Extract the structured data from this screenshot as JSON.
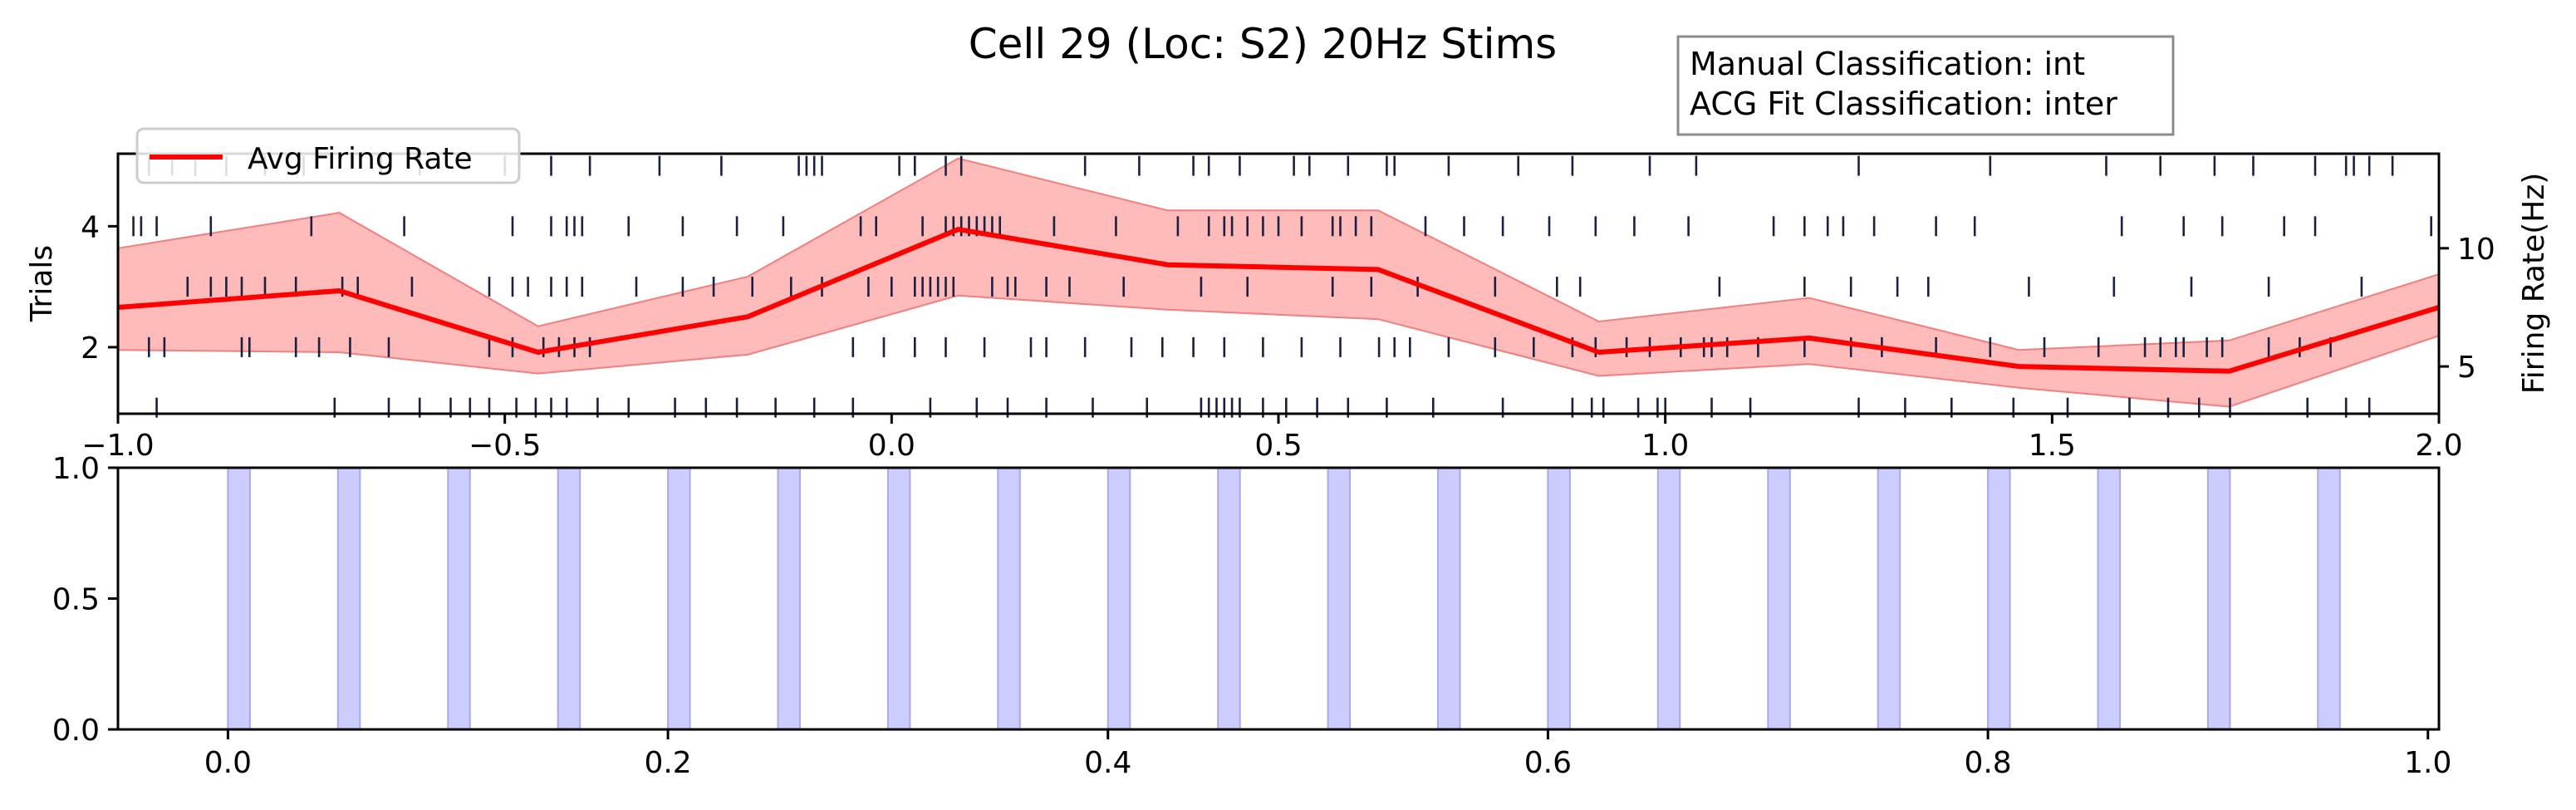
{
  "chart_data": [
    {
      "type": "line",
      "title": "Cell 29 (Loc: S2) 20Hz Stims",
      "annotation_box": [
        "Manual Classification: int",
        "ACG Fit Classification: inter"
      ],
      "xlim": [
        -1.0,
        2.0
      ],
      "x_ticks": [
        -1.0,
        -0.5,
        0.0,
        0.5,
        1.0,
        1.5,
        2.0
      ],
      "x_tick_labels": [
        "−1.0",
        "−0.5",
        "0.0",
        "0.5",
        "1.0",
        "1.5",
        "2.0"
      ],
      "left_axis": {
        "label": "Trials",
        "ylim": [
          0.9,
          5.2
        ],
        "ticks": [
          2,
          4
        ],
        "tick_labels": [
          "2",
          "4"
        ]
      },
      "right_axis": {
        "label": "Firing Rate(Hz)",
        "ylim": [
          3.0,
          14.0
        ],
        "ticks": [
          5,
          10
        ],
        "tick_labels": [
          "5",
          "10"
        ]
      },
      "legend": {
        "position": "top-left",
        "entries": [
          "Avg Firing Rate"
        ]
      },
      "series": [
        {
          "name": "Avg Firing Rate",
          "color": "#ff0000",
          "x": [
            -1.0,
            -0.714,
            -0.457,
            -0.186,
            0.086,
            0.357,
            0.629,
            0.914,
            1.186,
            1.457,
            1.729,
            2.0
          ],
          "mean": [
            7.5,
            8.2,
            5.6,
            7.1,
            10.8,
            9.3,
            9.1,
            5.6,
            6.2,
            5.0,
            4.8,
            7.5
          ],
          "upper": [
            10.0,
            11.5,
            6.7,
            8.8,
            13.8,
            11.6,
            11.6,
            6.9,
            7.9,
            5.7,
            6.1,
            8.9
          ],
          "lower": [
            5.7,
            5.6,
            4.7,
            5.5,
            8.0,
            7.4,
            7.0,
            4.6,
            5.1,
            4.1,
            3.3,
            6.3
          ],
          "band_color": "#ffb3b3"
        }
      ],
      "raster": {
        "color": "#1c2040",
        "trials": [
          {
            "trial": 1,
            "spikes": [
              -0.95,
              -0.72,
              -0.65,
              -0.61,
              -0.57,
              -0.545,
              -0.52,
              -0.485,
              -0.46,
              -0.44,
              -0.42,
              -0.38,
              -0.34,
              -0.28,
              -0.24,
              -0.2,
              -0.15,
              -0.1,
              -0.05,
              0.05,
              0.11,
              0.15,
              0.2,
              0.26,
              0.33,
              0.4,
              0.41,
              0.42,
              0.43,
              0.44,
              0.45,
              0.48,
              0.51,
              0.55,
              0.59,
              0.64,
              0.7,
              0.79,
              0.88,
              0.905,
              0.92,
              0.965,
              0.99,
              1.0,
              1.06,
              1.11,
              1.25,
              1.31,
              1.37,
              1.45,
              1.52,
              1.6,
              1.65,
              1.69,
              1.73,
              1.83,
              1.88,
              1.91
            ]
          },
          {
            "trial": 2,
            "spikes": [
              -0.96,
              -0.94,
              -0.84,
              -0.83,
              -0.77,
              -0.74,
              -0.7,
              -0.65,
              -0.52,
              -0.49,
              -0.45,
              -0.43,
              -0.41,
              -0.39,
              -0.05,
              -0.01,
              0.03,
              0.07,
              0.12,
              0.18,
              0.2,
              0.25,
              0.31,
              0.35,
              0.39,
              0.43,
              0.48,
              0.53,
              0.58,
              0.63,
              0.65,
              0.67,
              0.72,
              0.78,
              0.83,
              0.88,
              0.91,
              0.95,
              0.98,
              1.02,
              1.05,
              1.06,
              1.08,
              1.12,
              1.18,
              1.24,
              1.28,
              1.35,
              1.42,
              1.49,
              1.56,
              1.62,
              1.64,
              1.66,
              1.67,
              1.7,
              1.72,
              1.78,
              1.82,
              1.86
            ]
          },
          {
            "trial": 3,
            "spikes": [
              -0.91,
              -0.88,
              -0.86,
              -0.84,
              -0.81,
              -0.77,
              -0.71,
              -0.69,
              -0.62,
              -0.52,
              -0.49,
              -0.47,
              -0.44,
              -0.42,
              -0.4,
              -0.33,
              -0.27,
              -0.23,
              -0.18,
              -0.13,
              -0.09,
              -0.03,
              0.0,
              0.03,
              0.04,
              0.05,
              0.06,
              0.07,
              0.08,
              0.13,
              0.15,
              0.16,
              0.2,
              0.23,
              0.3,
              0.4,
              0.46,
              0.57,
              0.62,
              0.68,
              0.78,
              0.86,
              0.89,
              1.07,
              1.18,
              1.24,
              1.3,
              1.34,
              1.47,
              1.58,
              1.68,
              1.78,
              1.9
            ]
          },
          {
            "trial": 4,
            "spikes": [
              -0.98,
              -0.97,
              -0.95,
              -0.88,
              -0.75,
              -0.63,
              -0.49,
              -0.44,
              -0.42,
              -0.41,
              -0.4,
              -0.34,
              -0.27,
              -0.2,
              -0.14,
              -0.04,
              -0.02,
              0.04,
              0.07,
              0.08,
              0.09,
              0.1,
              0.11,
              0.12,
              0.13,
              0.14,
              0.21,
              0.29,
              0.37,
              0.41,
              0.43,
              0.44,
              0.46,
              0.48,
              0.5,
              0.53,
              0.57,
              0.58,
              0.6,
              0.62,
              0.69,
              0.74,
              0.79,
              0.85,
              0.91,
              0.96,
              1.03,
              1.14,
              1.18,
              1.21,
              1.23,
              1.27,
              1.35,
              1.4,
              1.59,
              1.67,
              1.72,
              1.8,
              1.84,
              1.99
            ]
          },
          {
            "trial": 5,
            "spikes": [
              -0.96,
              -0.93,
              -0.9,
              -0.86,
              -0.81,
              -0.76,
              -0.66,
              -0.61,
              -0.5,
              -0.44,
              -0.39,
              -0.3,
              -0.22,
              -0.12,
              -0.11,
              -0.1,
              -0.09,
              0.01,
              0.03,
              0.07,
              0.09,
              0.25,
              0.32,
              0.39,
              0.41,
              0.45,
              0.52,
              0.54,
              0.59,
              0.64,
              0.65,
              0.72,
              0.81,
              0.88,
              0.98,
              1.04,
              1.25,
              1.42,
              1.57,
              1.64,
              1.71,
              1.76,
              1.84,
              1.88,
              1.89,
              1.91,
              1.94
            ]
          }
        ]
      }
    },
    {
      "type": "area",
      "xlim": [
        -0.05,
        1.005
      ],
      "ylim": [
        0.0,
        1.0
      ],
      "x_ticks": [
        0.0,
        0.2,
        0.4,
        0.6,
        0.8,
        1.0
      ],
      "x_tick_labels": [
        "0.0",
        "0.2",
        "0.4",
        "0.6",
        "0.8",
        "1.0"
      ],
      "y_ticks": [
        0.0,
        0.5,
        1.0
      ],
      "y_tick_labels": [
        "0.0",
        "0.5",
        "1.0"
      ],
      "stim_color": "#ccccff",
      "stim_edge_color": "#a8a8ee",
      "stim_width": 0.01,
      "stim_onsets": [
        0.0,
        0.05,
        0.1,
        0.15,
        0.2,
        0.25,
        0.3,
        0.35,
        0.4,
        0.45,
        0.5,
        0.55,
        0.6,
        0.65,
        0.7,
        0.75,
        0.8,
        0.85,
        0.9,
        0.95
      ]
    }
  ]
}
